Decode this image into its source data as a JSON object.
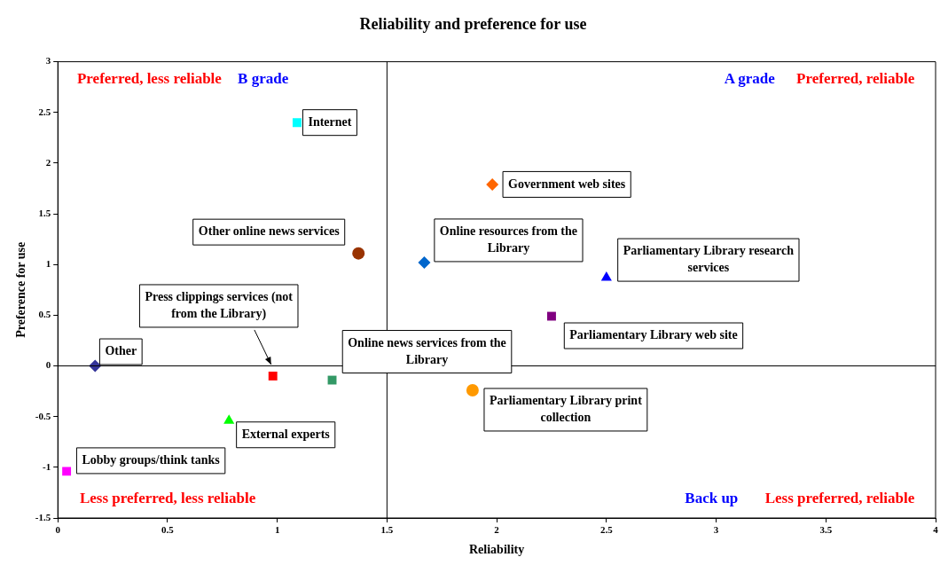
{
  "chart_data": {
    "type": "scatter",
    "title": "Reliability and preference for use",
    "xlabel": "Reliability",
    "ylabel": "Preference for use",
    "xlim": [
      0,
      4
    ],
    "xticks": [
      0,
      0.5,
      1,
      1.5,
      2,
      2.5,
      3,
      3.5,
      4
    ],
    "ylim": [
      -1.5,
      3
    ],
    "yticks": [
      -1.5,
      -1,
      -0.5,
      0,
      0.5,
      1,
      1.5,
      2,
      2.5,
      3
    ],
    "grid": false,
    "legend": false,
    "series": [
      {
        "name": "Internet",
        "color": "#00ffff",
        "marker": "square",
        "x": [
          1.09
        ],
        "values": [
          2.4
        ]
      },
      {
        "name": "Government web sites",
        "color": "#ff6600",
        "marker": "diamond",
        "x": [
          1.98
        ],
        "values": [
          1.79
        ]
      },
      {
        "name": "Other online news services",
        "color": "#993300",
        "marker": "circle",
        "x": [
          1.37
        ],
        "values": [
          1.11
        ]
      },
      {
        "name": "Online resources from the Library",
        "color": "#0066cc",
        "marker": "diamond",
        "x": [
          1.67
        ],
        "values": [
          1.02
        ]
      },
      {
        "name": "Parliamentary Library research services",
        "color": "#0000ff",
        "marker": "triangle",
        "x": [
          2.5
        ],
        "values": [
          0.87
        ]
      },
      {
        "name": "Parliamentary Library web site",
        "color": "#800080",
        "marker": "square",
        "x": [
          2.25
        ],
        "values": [
          0.49
        ]
      },
      {
        "name": "Other",
        "color": "#333399",
        "marker": "diamond",
        "x": [
          0.17
        ],
        "values": [
          0
        ]
      },
      {
        "name": "Press clippings services (not from the Library)",
        "color": "#ff0000",
        "marker": "square",
        "x": [
          0.98
        ],
        "values": [
          -0.1
        ]
      },
      {
        "name": "Online news services from the Library",
        "color": "#339966",
        "marker": "square",
        "x": [
          1.25
        ],
        "values": [
          -0.14
        ]
      },
      {
        "name": "Parliamentary Library print collection",
        "color": "#ff9900",
        "marker": "circle",
        "x": [
          1.89
        ],
        "values": [
          -0.24
        ]
      },
      {
        "name": "External experts",
        "color": "#00ff00",
        "marker": "triangle",
        "x": [
          0.78
        ],
        "values": [
          -0.54
        ]
      },
      {
        "name": "Lobby groups/think tanks",
        "color": "#ff00ff",
        "marker": "square",
        "x": [
          0.04
        ],
        "values": [
          -1.04
        ]
      }
    ],
    "ref_lines": [
      {
        "axis": "x",
        "value": 1.5,
        "color": "#000000"
      },
      {
        "axis": "y",
        "value": 0,
        "color": "#000000"
      }
    ],
    "annotations": [
      "Preferred, less reliable",
      "B grade",
      "A grade",
      "Preferred, reliable",
      "Less preferred, less reliable",
      "Back up",
      "Less preferred, reliable"
    ]
  }
}
